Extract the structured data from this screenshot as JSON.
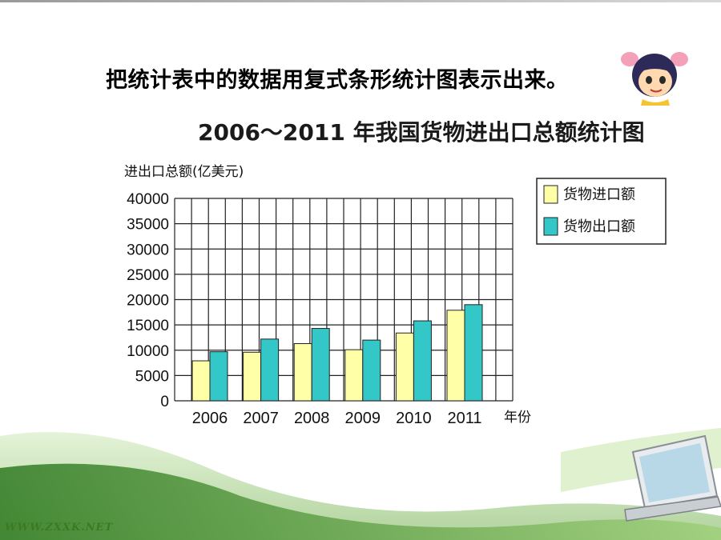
{
  "instruction": "把统计表中的数据用复式条形统计图表示出来。",
  "footer_url": "WWW.ZXXK.NET",
  "colors": {
    "import": "#ffffa8",
    "export": "#33c7c7",
    "grid": "#222222"
  },
  "chart_data": {
    "type": "bar",
    "title": "2006～2011 年我国货物进出口总额统计图",
    "ylabel": "进出口总额(亿美元)",
    "xlabel": "年份",
    "ylim": [
      0,
      40000
    ],
    "yticks": [
      0,
      5000,
      10000,
      15000,
      20000,
      25000,
      30000,
      35000,
      40000
    ],
    "grid": true,
    "legend_position": "top-right",
    "categories": [
      "2006",
      "2007",
      "2008",
      "2009",
      "2010",
      "2011"
    ],
    "series": [
      {
        "name": "货物进口额",
        "color": "#ffffa8",
        "values": [
          7900,
          9600,
          11300,
          10100,
          13400,
          17900
        ]
      },
      {
        "name": "货物出口额",
        "color": "#33c7c7",
        "values": [
          9700,
          12200,
          14300,
          12000,
          15800,
          19000
        ]
      }
    ]
  }
}
